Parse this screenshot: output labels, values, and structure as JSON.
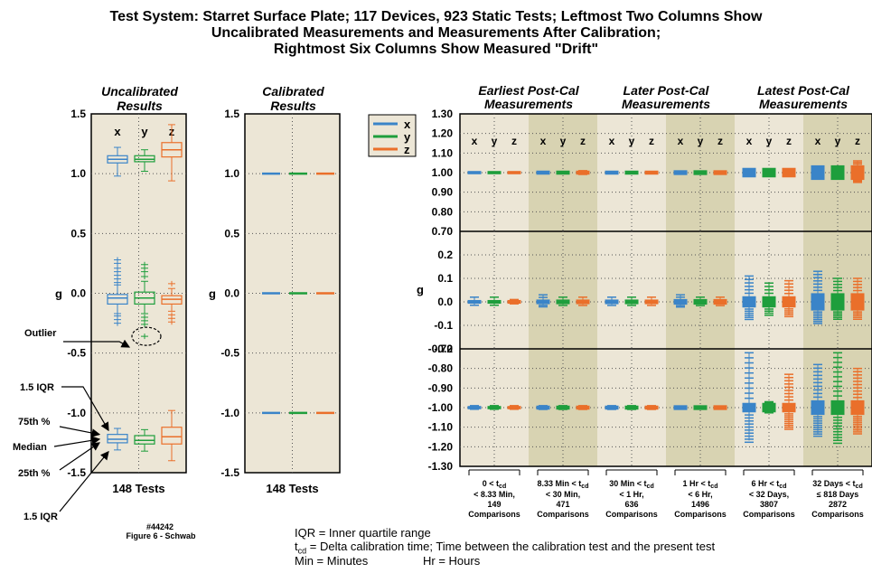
{
  "title_lines": [
    "Test System:  Starret Surface Plate; 117 Devices, 923 Static Tests; Leftmost Two Columns Show",
    "Uncalibrated Measurements and Measurements After Calibration;",
    "Rightmost Six Columns Show Measured \"Drift\""
  ],
  "colors": {
    "x": "#3a84c8",
    "y": "#1e9e3c",
    "z": "#ea6f2a",
    "panel_bg": "#ece6d6",
    "shade_bg": "#d8d3b2"
  },
  "legend": [
    "x",
    "y",
    "z"
  ],
  "chart_data": [
    {
      "type": "box",
      "id": "uncalibrated",
      "title": [
        "Uncalibrated",
        "Results"
      ],
      "ylabel": "g",
      "xlabel": "148 Tests",
      "ylim": [
        -1.5,
        1.5
      ],
      "yticks": [
        "1.5",
        "1.0",
        "0.5",
        "0.0",
        "-0.5",
        "-1.0",
        "-1.5"
      ],
      "yticks_val": [
        1.5,
        1.0,
        0.5,
        0.0,
        -0.5,
        -1.0,
        -1.5
      ],
      "axis_labels": [
        "x",
        "y",
        "z"
      ],
      "boxes": [
        {
          "axis": "x",
          "g": 1,
          "med": 1.12,
          "q1": 1.09,
          "q3": 1.15,
          "wlo": 0.98,
          "whi": 1.22,
          "out": []
        },
        {
          "axis": "y",
          "g": 1,
          "med": 1.12,
          "q1": 1.1,
          "q3": 1.15,
          "wlo": 1.02,
          "whi": 1.2,
          "out": []
        },
        {
          "axis": "z",
          "g": 1,
          "med": 1.2,
          "q1": 1.14,
          "q3": 1.26,
          "wlo": 0.94,
          "whi": 1.41,
          "out": []
        },
        {
          "axis": "x",
          "g": 0,
          "med": -0.04,
          "q1": -0.09,
          "q3": -0.01,
          "wlo": -0.17,
          "whi": 0.07,
          "out": [
            0.09,
            0.12,
            0.15,
            0.18,
            0.21,
            0.25,
            0.28,
            -0.19,
            -0.22,
            -0.25
          ]
        },
        {
          "axis": "y",
          "g": 0,
          "med": -0.04,
          "q1": -0.09,
          "q3": 0.01,
          "wlo": -0.17,
          "whi": 0.1,
          "out": [
            0.14,
            0.18,
            0.21,
            0.24,
            -0.2,
            -0.23,
            -0.26,
            -0.36
          ]
        },
        {
          "axis": "z",
          "g": 0,
          "med": -0.05,
          "q1": -0.09,
          "q3": -0.02,
          "wlo": -0.15,
          "whi": 0.04,
          "out": [
            0.08,
            -0.18,
            -0.21,
            -0.24
          ]
        },
        {
          "axis": "x",
          "g": -1,
          "med": -1.22,
          "q1": -1.25,
          "q3": -1.18,
          "wlo": -1.31,
          "whi": -1.13,
          "out": []
        },
        {
          "axis": "y",
          "g": -1,
          "med": -1.23,
          "q1": -1.26,
          "q3": -1.19,
          "wlo": -1.32,
          "whi": -1.14,
          "out": []
        },
        {
          "axis": "z",
          "g": -1,
          "med": -1.2,
          "q1": -1.26,
          "q3": -1.12,
          "wlo": -1.4,
          "whi": -0.98,
          "out": []
        }
      ],
      "annotations": [
        "Outlier",
        "1.5 IQR",
        "75th %",
        "Median",
        "25th %",
        "1.5 IQR"
      ]
    },
    {
      "type": "box",
      "id": "calibrated",
      "title": [
        "Calibrated",
        "Results"
      ],
      "ylabel": "g",
      "xlabel": "148 Tests",
      "ylim": [
        -1.5,
        1.5
      ],
      "yticks": [
        "1.5",
        "1.0",
        "0.5",
        "0.0",
        "-0.5",
        "-1.0",
        "-1.5"
      ],
      "yticks_val": [
        1.5,
        1.0,
        0.5,
        0.0,
        -0.5,
        -1.0,
        -1.5
      ],
      "boxes": [
        {
          "axis": "x",
          "g": 1,
          "med": 1.0
        },
        {
          "axis": "y",
          "g": 1,
          "med": 1.0
        },
        {
          "axis": "z",
          "g": 1,
          "med": 1.0
        },
        {
          "axis": "x",
          "g": 0,
          "med": 0.0
        },
        {
          "axis": "y",
          "g": 0,
          "med": 0.0
        },
        {
          "axis": "z",
          "g": 0,
          "med": 0.0
        },
        {
          "axis": "x",
          "g": -1,
          "med": -1.0
        },
        {
          "axis": "y",
          "g": -1,
          "med": -1.0
        },
        {
          "axis": "z",
          "g": -1,
          "med": -1.0
        }
      ]
    },
    {
      "type": "box",
      "id": "drift",
      "group_titles": [
        [
          "Earliest Post-Cal",
          "Measurements"
        ],
        [
          "Later Post-Cal",
          "Measurements"
        ],
        [
          "Latest Post-Cal",
          "Measurements"
        ]
      ],
      "ylabel": "g",
      "axis_labels": [
        "x",
        "y",
        "z"
      ],
      "bands": [
        {
          "ylim": [
            0.7,
            1.3
          ],
          "ticks": [
            "1.30",
            "1.20",
            "1.10",
            "1.00",
            "0.90",
            "0.80",
            "0.70"
          ],
          "ticks_val": [
            1.3,
            1.2,
            1.1,
            1.0,
            0.9,
            0.8,
            0.7
          ]
        },
        {
          "ylim": [
            -0.2,
            0.3
          ],
          "ticks": [
            "0.2",
            "0.1",
            "0.0",
            "-0.1",
            "-0.2"
          ],
          "ticks_val": [
            0.2,
            0.1,
            0.0,
            -0.1,
            -0.2
          ]
        },
        {
          "ylim": [
            -1.3,
            -0.7
          ],
          "ticks": [
            "-0.70",
            "-0.80",
            "-0.90",
            "-1.00",
            "-1.10",
            "-1.20",
            "-1.30"
          ],
          "ticks_val": [
            -0.7,
            -0.8,
            -0.9,
            -1.0,
            -1.1,
            -1.2,
            -1.3
          ]
        }
      ],
      "categories": [
        [
          "0 < t",
          "cd",
          "",
          "< 8.33 Min,",
          "149",
          "Comparisons"
        ],
        [
          "8.33 Min < t",
          "cd",
          "",
          "< 30 Min,",
          "471",
          "Comparisons"
        ],
        [
          "30 Min < t",
          "cd",
          "",
          "< 1 Hr,",
          "636",
          "Comparisons"
        ],
        [
          "1 Hr < t",
          "cd",
          "",
          "< 6 Hr,",
          "1496",
          "Comparisons"
        ],
        [
          "6 Hr < t",
          "cd",
          "",
          "< 32 Days,",
          "3807",
          "Comparisons"
        ],
        [
          "32 Days < t",
          "cd",
          "",
          "≤ 818 Days",
          "2872",
          "Comparisons"
        ]
      ],
      "spread": [
        0.006,
        0.008,
        0.008,
        0.01,
        0.022,
        0.035
      ],
      "outliers": {
        "band0": [
          [
            0.0,
            0.0,
            0.0
          ],
          [
            0.0,
            0.0,
            0.01
          ],
          [
            0.0,
            0.0,
            0.0
          ],
          [
            0.0,
            0.0,
            0.0
          ],
          [
            0.0,
            0.0,
            0.02
          ],
          [
            0.01,
            0.01,
            0.06
          ]
        ],
        "band1": [
          [
            0.02,
            0.02,
            0.01
          ],
          [
            0.03,
            0.02,
            0.02
          ],
          [
            0.02,
            0.02,
            0.02
          ],
          [
            0.03,
            0.02,
            0.02
          ],
          [
            0.11,
            0.08,
            0.09
          ],
          [
            0.13,
            0.1,
            0.1
          ]
        ],
        "band2": [
          [
            0.01,
            0.01,
            0.01
          ],
          [
            0.01,
            0.01,
            0.01
          ],
          [
            0.01,
            0.01,
            0.01
          ],
          [
            0.01,
            0.01,
            0.01
          ],
          [
            0.28,
            0.03,
            0.17
          ],
          [
            0.22,
            0.28,
            0.2
          ]
        ]
      }
    }
  ],
  "footer": {
    "fig_id": "#44242",
    "fig_caption": "Figure 6 - Schwab",
    "iqr": "IQR = Inner quartile range",
    "tcd_t": "t",
    "tcd_sub": "cd",
    "tcd_rest": " = Delta calibration time; Time between the calibration test and the present test",
    "min": "Min = Minutes",
    "hr": "Hr = Hours"
  }
}
